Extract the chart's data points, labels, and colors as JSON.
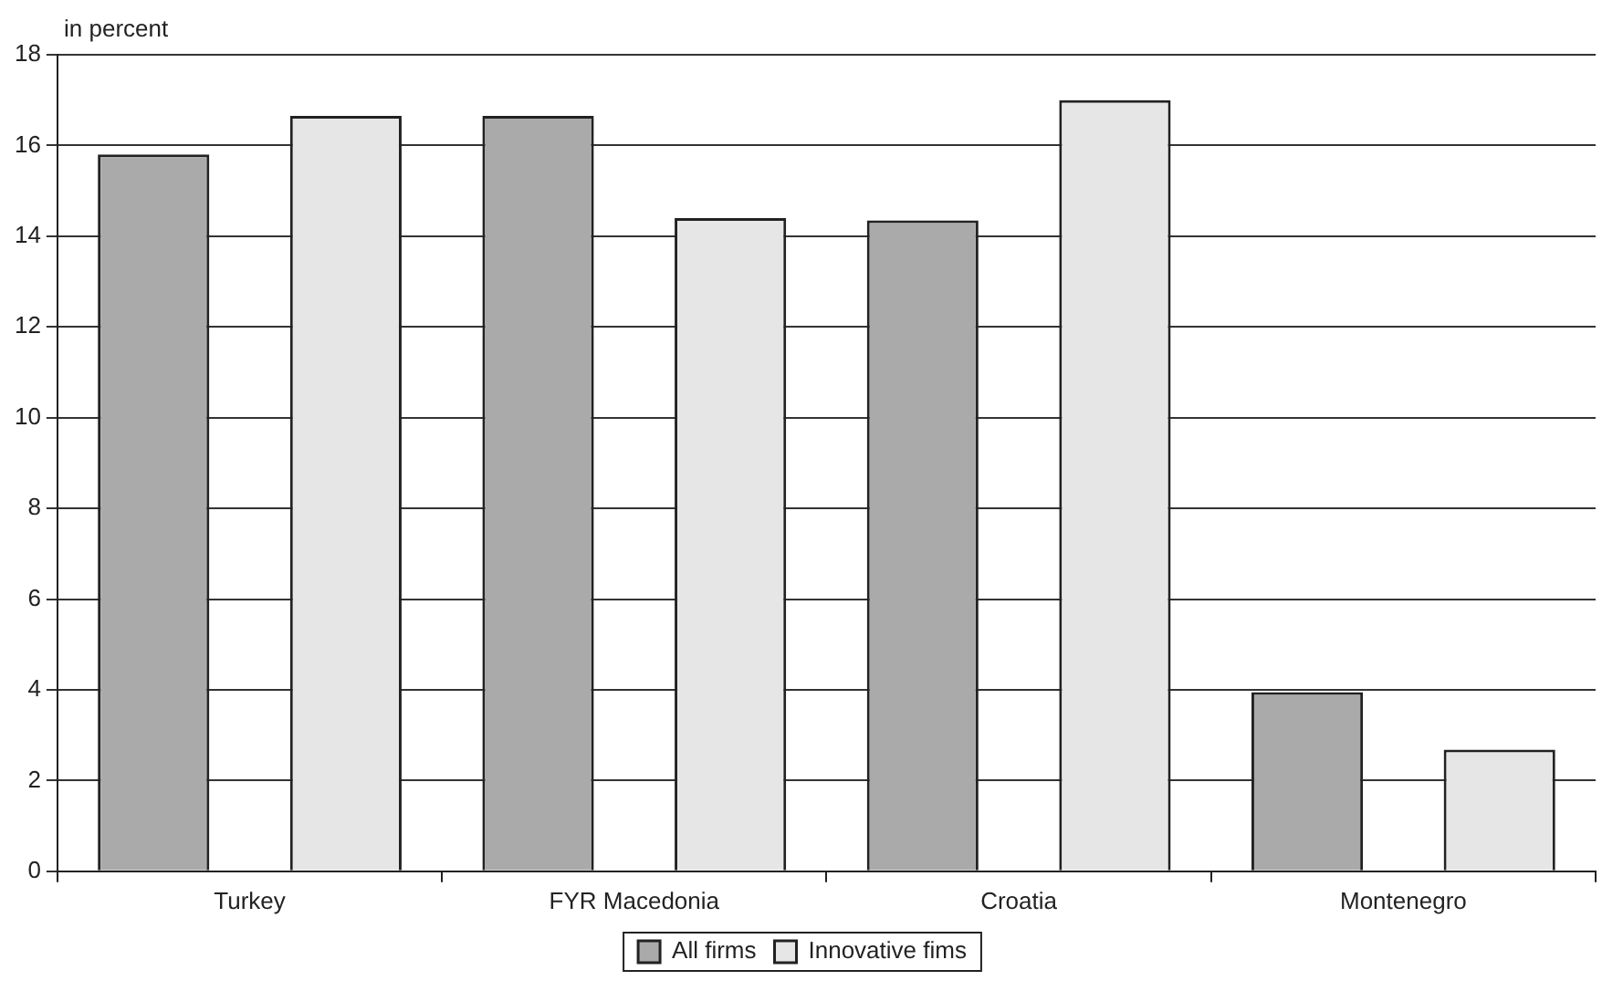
{
  "chart_data": {
    "type": "bar",
    "ylabel": "in percent",
    "categories": [
      "Turkey",
      "FYR Macedonia",
      "Croatia",
      "Montenegro"
    ],
    "series": [
      {
        "name": "All firms",
        "color": "#aaaaaa",
        "values": [
          15.8,
          16.65,
          14.35,
          3.95
        ]
      },
      {
        "name": "Innovative fims",
        "color": "#e6e6e6",
        "values": [
          16.65,
          14.4,
          17.0,
          2.68
        ]
      }
    ],
    "ylim": [
      0,
      18
    ],
    "yticks": [
      0,
      2,
      4,
      6,
      8,
      10,
      12,
      14,
      16,
      18
    ],
    "grid": "y",
    "legend": "bottom"
  }
}
